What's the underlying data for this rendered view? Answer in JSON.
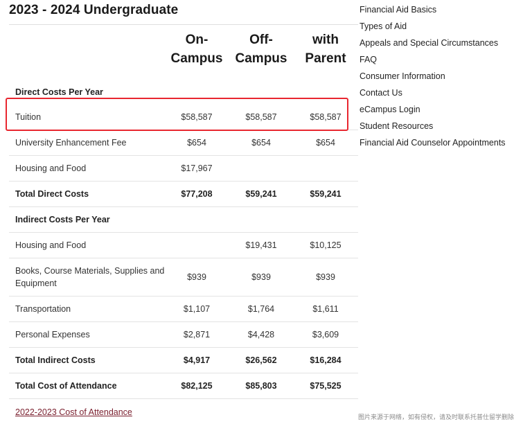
{
  "page_title": "2023 - 2024 Undergraduate",
  "columns": [
    {
      "line1": "On-",
      "line2": "Campus"
    },
    {
      "line1": "Off-",
      "line2": "Campus"
    },
    {
      "line1": "with",
      "line2": "Parent"
    }
  ],
  "rows": [
    {
      "label": "Direct Costs Per Year",
      "values": [
        "",
        "",
        ""
      ]
    },
    {
      "label": "Tuition",
      "values": [
        "$58,587",
        "$58,587",
        "$58,587"
      ]
    },
    {
      "label": "University Enhancement Fee",
      "values": [
        "$654",
        "$654",
        "$654"
      ]
    },
    {
      "label": "Housing and Food",
      "values": [
        "$17,967",
        "",
        ""
      ]
    },
    {
      "label": "Total Direct Costs",
      "values": [
        "$77,208",
        "$59,241",
        "$59,241"
      ]
    },
    {
      "label": "Indirect Costs Per Year",
      "values": [
        "",
        "",
        ""
      ]
    },
    {
      "label": "Housing and Food",
      "values": [
        "",
        "$19,431",
        "$10,125"
      ]
    },
    {
      "label": "Books, Course Materials, Supplies and Equipment",
      "values": [
        "$939",
        "$939",
        "$939"
      ]
    },
    {
      "label": "Transportation",
      "values": [
        "$1,107",
        "$1,764",
        "$1,611"
      ]
    },
    {
      "label": "Personal Expenses",
      "values": [
        "$2,871",
        "$4,428",
        "$3,609"
      ]
    },
    {
      "label": "Total Indirect Costs",
      "values": [
        "$4,917",
        "$26,562",
        "$16,284"
      ]
    },
    {
      "label": "Total Cost of Attendance",
      "values": [
        "$82,125",
        "$85,803",
        "$75,525"
      ]
    }
  ],
  "footer_link": "2022-2023 Cost of Attendance",
  "side_nav": [
    "Financial Aid Basics",
    "Types of Aid",
    "Appeals and Special Circumstances",
    "FAQ",
    "Consumer Information",
    "Contact Us",
    "eCampus Login",
    "Student Resources",
    "Financial Aid Counselor Appointments"
  ],
  "watermark": "图片来源于网络，如有侵权，请及时联系托普仕留学删除",
  "colors": {
    "highlight_border": "#e8262f",
    "footer_link": "#7a1f2e",
    "row_divider": "#e3e3e3"
  }
}
